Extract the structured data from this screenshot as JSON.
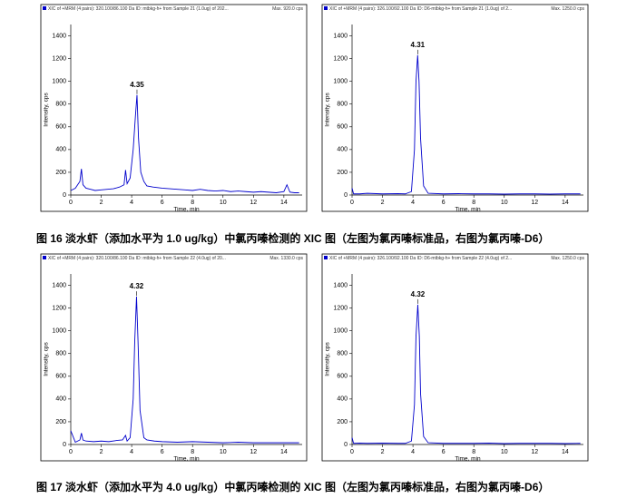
{
  "chart_data": [
    {
      "type": "line",
      "title": "XIC of +MRM (4 pairs): 320.100/86.100 Da ID: mtbkg-h+ from Sample 21 (1.0ug) of 202...",
      "max_label": "Max. 920.0 cps",
      "x_label": "Time, min",
      "y_label": "Intensity, cps",
      "color": "#0000cc",
      "x": [
        0,
        0.3,
        0.6,
        0.7,
        0.8,
        1.0,
        1.3,
        1.6,
        2.0,
        2.4,
        2.8,
        3.2,
        3.5,
        3.6,
        3.7,
        3.9,
        4.1,
        4.25,
        4.35,
        4.45,
        4.6,
        4.8,
        5.0,
        5.4,
        6.0,
        6.5,
        7.0,
        7.5,
        8.0,
        8.5,
        9.0,
        9.5,
        10,
        10.5,
        11,
        11.5,
        12,
        12.5,
        13,
        13.5,
        14,
        14.2,
        14.4,
        14.7,
        15
      ],
      "values": [
        40,
        60,
        120,
        230,
        90,
        60,
        50,
        40,
        45,
        50,
        55,
        70,
        90,
        220,
        100,
        150,
        400,
        700,
        880,
        500,
        200,
        120,
        80,
        70,
        60,
        55,
        50,
        45,
        40,
        50,
        40,
        35,
        40,
        30,
        35,
        30,
        25,
        30,
        25,
        20,
        30,
        90,
        25,
        20,
        20
      ],
      "peak_label": {
        "x": 4.35,
        "y": 880,
        "text": "4.35"
      },
      "xlim": [
        0,
        15.2
      ],
      "ylim": [
        0,
        1500
      ],
      "xticks": [
        0,
        2,
        4,
        6,
        8,
        10,
        12,
        14
      ],
      "yticks": [
        0,
        200,
        400,
        600,
        800,
        1000,
        1200,
        1400
      ]
    },
    {
      "type": "line",
      "title": "XIC of +MRM (4 pairs): 326.100/92.100 Da ID: D6-mtbkg-h+ from Sample 21 (1.0ug) of 2...",
      "max_label": "Max. 1250.0 cps",
      "x_label": "Time, min",
      "y_label": "Intensity, cps",
      "color": "#0000cc",
      "x": [
        0,
        0.1,
        0.5,
        1,
        2,
        3,
        3.5,
        3.9,
        4.1,
        4.2,
        4.31,
        4.4,
        4.5,
        4.7,
        5.0,
        6,
        7,
        8,
        9,
        10,
        11,
        12,
        13,
        14,
        15
      ],
      "values": [
        60,
        10,
        10,
        15,
        10,
        12,
        10,
        30,
        400,
        1000,
        1230,
        1000,
        500,
        80,
        15,
        10,
        12,
        10,
        10,
        8,
        10,
        10,
        8,
        10,
        10
      ],
      "peak_label": {
        "x": 4.31,
        "y": 1230,
        "text": "4.31"
      },
      "xlim": [
        0,
        15.2
      ],
      "ylim": [
        0,
        1500
      ],
      "xticks": [
        0,
        2,
        4,
        6,
        8,
        10,
        12,
        14
      ],
      "yticks": [
        0,
        200,
        400,
        600,
        800,
        1000,
        1200,
        1400
      ]
    },
    {
      "type": "line",
      "title": "XIC of +MRM (4 pairs): 320.100/86.100 Da ID: mtbkg-h+ from Sample 22 (4.0ug) of 20...",
      "max_label": "Max. 1330.0 cps",
      "x_label": "Time, min",
      "y_label": "Intensity, cps",
      "color": "#0000cc",
      "x": [
        0,
        0.3,
        0.6,
        0.7,
        0.8,
        1.0,
        1.5,
        2.0,
        2.5,
        3.0,
        3.4,
        3.6,
        3.7,
        3.9,
        4.1,
        4.2,
        4.32,
        4.42,
        4.55,
        4.8,
        5.0,
        5.5,
        6,
        7,
        8,
        9,
        10,
        11,
        12,
        13,
        14,
        15
      ],
      "values": [
        120,
        20,
        40,
        100,
        40,
        30,
        25,
        30,
        25,
        35,
        40,
        80,
        30,
        60,
        400,
        900,
        1300,
        900,
        300,
        60,
        40,
        30,
        25,
        20,
        25,
        20,
        15,
        20,
        15,
        15,
        15,
        15
      ],
      "peak_label": {
        "x": 4.32,
        "y": 1300,
        "text": "4.32"
      },
      "xlim": [
        0,
        15.2
      ],
      "ylim": [
        0,
        1500
      ],
      "xticks": [
        0,
        2,
        4,
        6,
        8,
        10,
        12,
        14
      ],
      "yticks": [
        0,
        200,
        400,
        600,
        800,
        1000,
        1200,
        1400
      ]
    },
    {
      "type": "line",
      "title": "XIC of +MRM (4 pairs): 326.100/92.100 Da ID: D6-mtbkg-h+ from Sample 22 (4.0ug) of 2...",
      "max_label": "Max. 1250.0 cps",
      "x_label": "Time, min",
      "y_label": "Intensity, cps",
      "color": "#0000cc",
      "x": [
        0,
        0.1,
        0.5,
        1,
        2,
        3,
        3.5,
        3.9,
        4.1,
        4.2,
        4.32,
        4.42,
        4.5,
        4.7,
        5.0,
        6,
        7,
        8,
        9,
        10,
        11,
        12,
        13,
        14,
        15
      ],
      "values": [
        60,
        10,
        12,
        10,
        12,
        10,
        10,
        30,
        350,
        950,
        1230,
        950,
        450,
        70,
        15,
        10,
        10,
        10,
        12,
        8,
        10,
        10,
        10,
        8,
        10
      ],
      "peak_label": {
        "x": 4.32,
        "y": 1230,
        "text": "4.32"
      },
      "xlim": [
        0,
        15.2
      ],
      "ylim": [
        0,
        1500
      ],
      "xticks": [
        0,
        2,
        4,
        6,
        8,
        10,
        12,
        14
      ],
      "yticks": [
        0,
        200,
        400,
        600,
        800,
        1000,
        1200,
        1400
      ]
    }
  ],
  "captions": [
    "图 16  淡水虾（添加水平为 1.0 ug/kg）中氯丙嗪检测的 XIC 图（左图为氯丙嗪标准品，右图为氯丙嗪-D6）",
    "图 17  淡水虾（添加水平为 4.0 ug/kg）中氯丙嗪检测的 XIC 图（左图为氯丙嗪标准品，右图为氯丙嗪-D6）"
  ]
}
